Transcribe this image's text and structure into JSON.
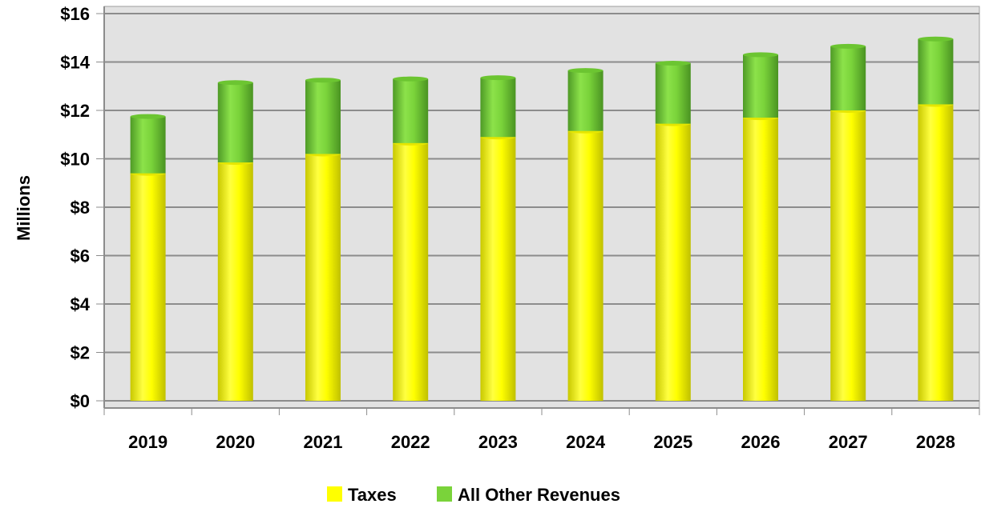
{
  "chart_data": {
    "type": "bar",
    "stacked": true,
    "categories": [
      "2019",
      "2020",
      "2021",
      "2022",
      "2023",
      "2024",
      "2025",
      "2026",
      "2027",
      "2028"
    ],
    "series": [
      {
        "name": "Taxes",
        "color": "#FFFF00",
        "values": [
          9.4,
          9.85,
          10.2,
          10.65,
          10.9,
          11.15,
          11.45,
          11.7,
          12.0,
          12.25
        ]
      },
      {
        "name": "All Other Revenues",
        "color": "#7AD33A",
        "values": [
          2.35,
          3.3,
          3.05,
          2.65,
          2.45,
          2.5,
          2.5,
          2.6,
          2.65,
          2.7
        ]
      }
    ],
    "ylabel": "Millions",
    "xlabel": "",
    "ylim": [
      0,
      16
    ],
    "ytick_values": [
      0,
      2,
      4,
      6,
      8,
      10,
      12,
      14,
      16
    ],
    "ytick_labels": [
      "$0",
      "$2",
      "$4",
      "$6",
      "$8",
      "$10",
      "$12",
      "$14",
      "$16"
    ],
    "grid": true,
    "legend_position": "bottom-center",
    "plot_background": "#E2E2E2"
  }
}
